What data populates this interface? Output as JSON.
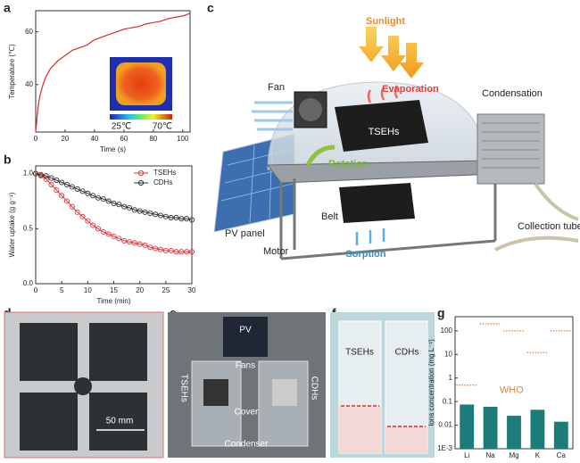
{
  "panel_labels": [
    "a",
    "b",
    "c",
    "d",
    "e",
    "f",
    "g"
  ],
  "chart_data": [
    {
      "type": "line",
      "y_label": "Temperature (℃)",
      "x_label": "Time (s)",
      "x": [
        0,
        1,
        2,
        3,
        5,
        7,
        10,
        15,
        20,
        25,
        30,
        35,
        40,
        45,
        50,
        55,
        60,
        65,
        70,
        75,
        80,
        85,
        90,
        95,
        100,
        105
      ],
      "values": [
        22,
        28,
        33,
        36,
        40,
        43,
        46,
        49,
        51,
        53,
        54,
        55,
        57,
        58,
        59,
        60,
        61,
        61.5,
        62,
        63,
        63.5,
        64,
        65,
        65.5,
        66,
        67
      ],
      "color": "#d62b2b",
      "xlim": [
        0,
        105
      ],
      "xticks": [
        0,
        20,
        40,
        60,
        80,
        100
      ],
      "ylim": [
        22,
        68
      ],
      "yticks": [
        40,
        60
      ],
      "colorbar_labels": [
        "25℃",
        "70℃"
      ]
    },
    {
      "type": "line",
      "y_label": "Water uptake (g g⁻¹)",
      "x_label": "Time (min)",
      "x": [
        0,
        1,
        2,
        3,
        4,
        5,
        6,
        7,
        8,
        9,
        10,
        11,
        12,
        13,
        14,
        15,
        16,
        17,
        18,
        19,
        20,
        21,
        22,
        23,
        24,
        25,
        26,
        27,
        28,
        29,
        30
      ],
      "series": [
        {
          "name": "TSEHs",
          "color": "#e0393e",
          "values": [
            1.0,
            0.98,
            0.95,
            0.9,
            0.85,
            0.8,
            0.75,
            0.7,
            0.65,
            0.61,
            0.57,
            0.53,
            0.5,
            0.47,
            0.45,
            0.43,
            0.41,
            0.39,
            0.38,
            0.37,
            0.36,
            0.35,
            0.33,
            0.32,
            0.31,
            0.3,
            0.3,
            0.29,
            0.29,
            0.29,
            0.29
          ]
        },
        {
          "name": "CDHs",
          "color": "#333333",
          "values": [
            1.0,
            0.99,
            0.98,
            0.96,
            0.94,
            0.92,
            0.9,
            0.88,
            0.86,
            0.84,
            0.82,
            0.8,
            0.78,
            0.77,
            0.75,
            0.73,
            0.72,
            0.7,
            0.69,
            0.67,
            0.66,
            0.65,
            0.64,
            0.63,
            0.62,
            0.61,
            0.6,
            0.6,
            0.59,
            0.59,
            0.58
          ]
        }
      ],
      "xlim": [
        0,
        30
      ],
      "xticks": [
        0,
        5,
        10,
        15,
        20,
        25,
        30
      ],
      "ylim": [
        0,
        1.07
      ],
      "yticks": [
        {
          "value": 0,
          "label": "0.0"
        },
        0.5,
        {
          "value": 1,
          "label": "1.0"
        }
      ],
      "legend": "upper right"
    },
    {
      "type": "bar",
      "y_label": "Ions concentration (mg L⁻¹)",
      "categories": [
        "Li",
        "Na",
        "Mg",
        "K",
        "Ca"
      ],
      "values": [
        0.075,
        0.06,
        0.025,
        0.045,
        0.014
      ],
      "color": "#1b7c79",
      "reference": {
        "name": "WHO",
        "values": [
          0.5,
          200,
          100,
          12,
          100
        ],
        "color": "#f07f30"
      },
      "log_scale": true,
      "ylim": [
        0.001,
        400
      ],
      "yticks": [
        {
          "value": 0.001,
          "label": "1E-3"
        },
        0.01,
        0.1,
        1,
        10,
        100
      ]
    }
  ],
  "diagram": {
    "labels": [
      "Sunlight",
      "Evaporation",
      "Fan",
      "Condensation",
      "TSEHs",
      "Rotation",
      "Belt",
      "PV panel",
      "Motor",
      "Sorption",
      "Collection tube"
    ]
  },
  "photo_d": {
    "scale": "50 mm"
  },
  "photo_e": {
    "labels": [
      "PV",
      "Fans",
      "TSEHs",
      "CDHs",
      "Cover",
      "Condenser"
    ]
  },
  "photo_f": {
    "labels": [
      "TSEHs",
      "CDHs"
    ]
  }
}
